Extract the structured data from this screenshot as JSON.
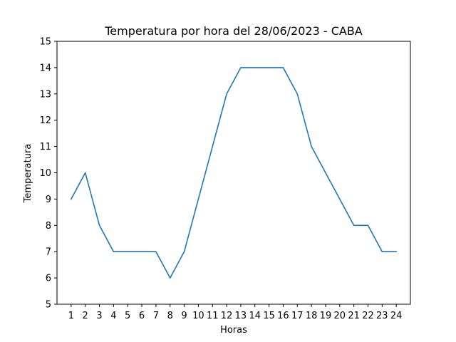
{
  "chart_data": {
    "type": "line",
    "title": "Temperatura por hora del 28/06/2023 - CABA",
    "xlabel": "Horas",
    "ylabel": "Temperatura",
    "x": [
      1,
      2,
      3,
      4,
      5,
      6,
      7,
      8,
      9,
      10,
      11,
      12,
      13,
      14,
      15,
      16,
      17,
      18,
      19,
      20,
      21,
      22,
      23,
      24
    ],
    "series": [
      {
        "values": [
          9,
          10,
          8,
          7,
          7,
          7,
          7,
          6,
          7,
          9,
          11,
          13,
          14,
          14,
          14,
          14,
          13,
          11,
          10,
          9,
          8,
          8,
          7,
          7
        ],
        "color": "#1f77b4"
      }
    ],
    "xlim": [
      0,
      25
    ],
    "ylim": [
      5,
      15
    ],
    "yticks": [
      5,
      6,
      7,
      8,
      9,
      10,
      11,
      12,
      13,
      14,
      15
    ],
    "xticks": [
      1,
      2,
      3,
      4,
      5,
      6,
      7,
      8,
      9,
      10,
      11,
      12,
      13,
      14,
      15,
      16,
      17,
      18,
      19,
      20,
      21,
      22,
      23,
      24
    ],
    "grid": false,
    "legend": "none"
  }
}
